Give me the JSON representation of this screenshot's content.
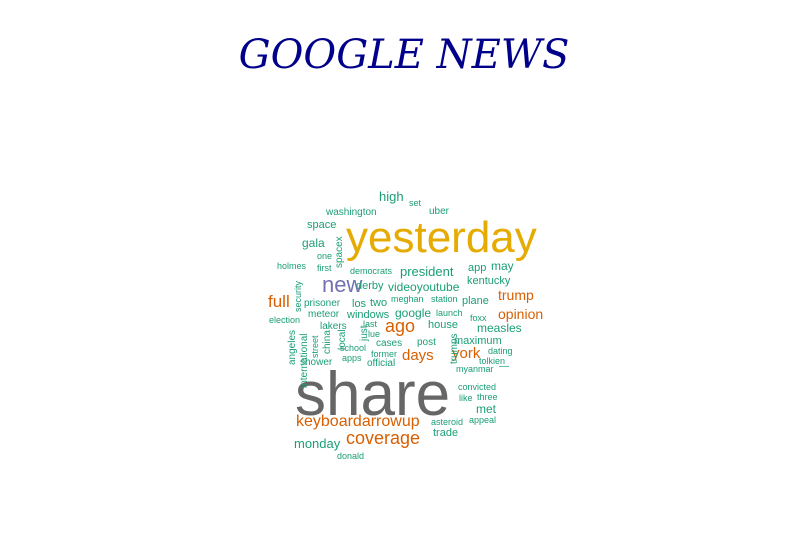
{
  "chart_data": {
    "type": "wordcloud",
    "title": "GOOGLE NEWS",
    "colors": {
      "title": "#00008b",
      "teal": "#1b9e77",
      "orange": "#d95f02",
      "purple": "#7570b3",
      "gold": "#e6ab02",
      "gray": "#666666"
    },
    "words": [
      {
        "text": "share",
        "color": "#666666"
      },
      {
        "text": "yesterday",
        "color": "#e6ab02"
      },
      {
        "text": "new",
        "color": "#7570b3"
      },
      {
        "text": "coverage",
        "color": "#d95f02"
      },
      {
        "text": "keyboardarrowup",
        "color": "#d95f02"
      },
      {
        "text": "full",
        "color": "#d95f02"
      },
      {
        "text": "ago",
        "color": "#d95f02"
      },
      {
        "text": "days",
        "color": "#d95f02"
      },
      {
        "text": "york",
        "color": "#d95f02"
      },
      {
        "text": "opinion",
        "color": "#d95f02"
      },
      {
        "text": "trump",
        "color": "#d95f02"
      },
      {
        "text": "high",
        "color": "#1b9e77"
      },
      {
        "text": "set",
        "color": "#1b9e77"
      },
      {
        "text": "uber",
        "color": "#1b9e77"
      },
      {
        "text": "washington",
        "color": "#1b9e77"
      },
      {
        "text": "space",
        "color": "#1b9e77"
      },
      {
        "text": "spacex",
        "color": "#1b9e77"
      },
      {
        "text": "gala",
        "color": "#1b9e77"
      },
      {
        "text": "one",
        "color": "#1b9e77"
      },
      {
        "text": "first",
        "color": "#1b9e77"
      },
      {
        "text": "holmes",
        "color": "#1b9e77"
      },
      {
        "text": "democrats",
        "color": "#1b9e77"
      },
      {
        "text": "president",
        "color": "#1b9e77"
      },
      {
        "text": "app",
        "color": "#1b9e77"
      },
      {
        "text": "may",
        "color": "#1b9e77"
      },
      {
        "text": "kentucky",
        "color": "#1b9e77"
      },
      {
        "text": "security",
        "color": "#1b9e77"
      },
      {
        "text": "derby",
        "color": "#1b9e77"
      },
      {
        "text": "videoyoutube",
        "color": "#1b9e77"
      },
      {
        "text": "meghan",
        "color": "#1b9e77"
      },
      {
        "text": "station",
        "color": "#1b9e77"
      },
      {
        "text": "plane",
        "color": "#1b9e77"
      },
      {
        "text": "prisoner",
        "color": "#1b9e77"
      },
      {
        "text": "los",
        "color": "#1b9e77"
      },
      {
        "text": "two",
        "color": "#1b9e77"
      },
      {
        "text": "google",
        "color": "#1b9e77"
      },
      {
        "text": "launch",
        "color": "#1b9e77"
      },
      {
        "text": "foxx",
        "color": "#1b9e77"
      },
      {
        "text": "election",
        "color": "#1b9e77"
      },
      {
        "text": "meteor",
        "color": "#1b9e77"
      },
      {
        "text": "windows",
        "color": "#1b9e77"
      },
      {
        "text": "house",
        "color": "#1b9e77"
      },
      {
        "text": "measles",
        "color": "#1b9e77"
      },
      {
        "text": "angeles",
        "color": "#1b9e77"
      },
      {
        "text": "international",
        "color": "#1b9e77"
      },
      {
        "text": "street",
        "color": "#1b9e77"
      },
      {
        "text": "china",
        "color": "#1b9e77"
      },
      {
        "text": "lakers",
        "color": "#1b9e77"
      },
      {
        "text": "last",
        "color": "#1b9e77"
      },
      {
        "text": "just",
        "color": "#1b9e77"
      },
      {
        "text": "local",
        "color": "#1b9e77"
      },
      {
        "text": "lue",
        "color": "#1b9e77"
      },
      {
        "text": "trumps",
        "color": "#1b9e77"
      },
      {
        "text": "maximum",
        "color": "#1b9e77"
      },
      {
        "text": "school",
        "color": "#1b9e77"
      },
      {
        "text": "cases",
        "color": "#1b9e77"
      },
      {
        "text": "post",
        "color": "#1b9e77"
      },
      {
        "text": "dating",
        "color": "#1b9e77"
      },
      {
        "text": "shower",
        "color": "#1b9e77"
      },
      {
        "text": "apps",
        "color": "#1b9e77"
      },
      {
        "text": "former",
        "color": "#1b9e77"
      },
      {
        "text": "official",
        "color": "#1b9e77"
      },
      {
        "text": "tolkien",
        "color": "#1b9e77"
      },
      {
        "text": "myanmar",
        "color": "#1b9e77"
      },
      {
        "text": "—",
        "color": "#1b9e77"
      },
      {
        "text": "convicted",
        "color": "#1b9e77"
      },
      {
        "text": "like",
        "color": "#1b9e77"
      },
      {
        "text": "three",
        "color": "#1b9e77"
      },
      {
        "text": "met",
        "color": "#1b9e77"
      },
      {
        "text": "asteroid",
        "color": "#1b9e77"
      },
      {
        "text": "appeal",
        "color": "#1b9e77"
      },
      {
        "text": "trade",
        "color": "#1b9e77"
      },
      {
        "text": "monday",
        "color": "#1b9e77"
      },
      {
        "text": "donald",
        "color": "#1b9e77"
      }
    ]
  }
}
